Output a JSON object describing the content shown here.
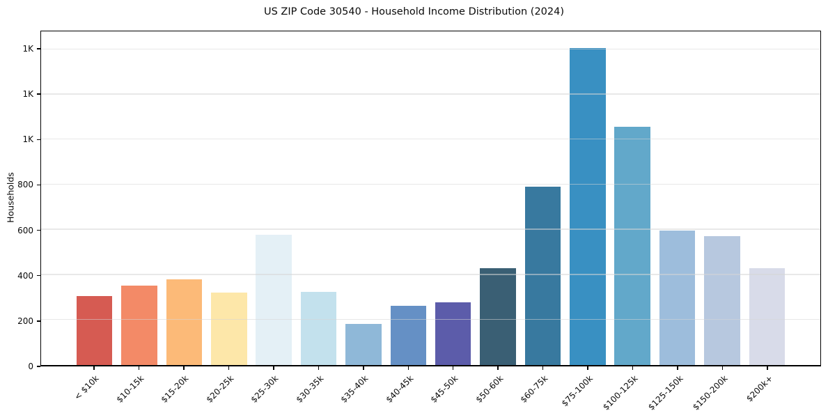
{
  "chart_data": {
    "type": "bar",
    "title": "US ZIP Code 30540 - Household Income Distribution (2024)",
    "xlabel": "",
    "ylabel": "Households",
    "categories": [
      "< $10k",
      "$10-15k",
      "$15-20k",
      "$20-25k",
      "$25-30k",
      "$30-35k",
      "$35-40k",
      "$40-45k",
      "$45-50k",
      "$50-60k",
      "$60-75k",
      "$75-100k",
      "$100-125k",
      "$125-150k",
      "$150-200k",
      "$200k+"
    ],
    "values": [
      306,
      352,
      380,
      320,
      578,
      324,
      183,
      262,
      278,
      431,
      792,
      1407,
      1057,
      596,
      572,
      428
    ],
    "bar_colors": [
      "#d65b52",
      "#f38a67",
      "#fcba78",
      "#fde7a9",
      "#e4f0f6",
      "#c3e1ed",
      "#8fb8d8",
      "#6590c5",
      "#5c5caa",
      "#3a5f74",
      "#38799f",
      "#3990c2",
      "#62a8ca",
      "#9dbddc",
      "#b7c8df",
      "#d8dbe9"
    ],
    "ylim": [
      0,
      1480
    ],
    "yticks": [
      {
        "value": 0,
        "label": "0"
      },
      {
        "value": 200,
        "label": "200"
      },
      {
        "value": 400,
        "label": "400"
      },
      {
        "value": 600,
        "label": "600"
      },
      {
        "value": 800,
        "label": "800"
      },
      {
        "value": 1000,
        "label": "1K"
      },
      {
        "value": 1200,
        "label": "1K"
      },
      {
        "value": 1400,
        "label": "1K"
      }
    ],
    "x_tick_rotation_deg": 45,
    "grid": true,
    "grid_axis": "y",
    "legend": false,
    "background_color": "#ffffff",
    "axis_color": "#000000",
    "grid_color": "#e9e9e9"
  }
}
